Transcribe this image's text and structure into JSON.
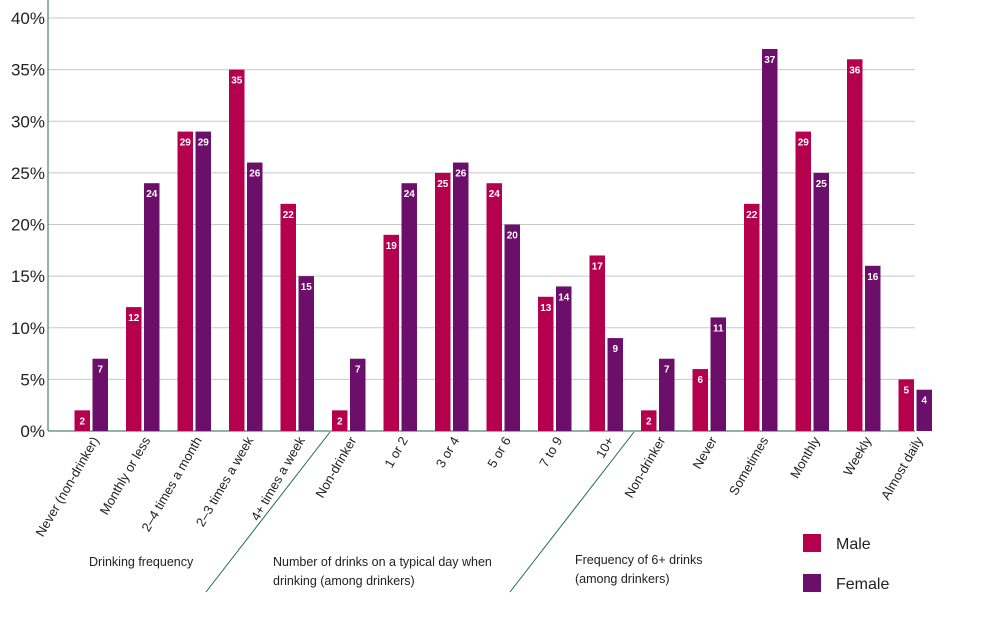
{
  "chart_data": {
    "type": "bar",
    "ylim": [
      0,
      40
    ],
    "yticks": [
      "0%",
      "5%",
      "10%",
      "15%",
      "20%",
      "25%",
      "30%",
      "35%",
      "40%"
    ],
    "grid": true,
    "legend_position": "bottom-right",
    "categories": [
      "Never (non-drinker)",
      "Monthly or less",
      "2–4 times a month",
      "2–3 times a week",
      "4+ times a week",
      "Non-drinker",
      "1 or 2",
      "3 or 4",
      "5 or 6",
      "7 to 9",
      "10+",
      "Non-drinker",
      "Never",
      "Sometimes",
      "Monthly",
      "Weekly",
      "Almost daily"
    ],
    "series": [
      {
        "name": "Male",
        "color": "#b5004d",
        "values": [
          2,
          12,
          29,
          35,
          22,
          2,
          19,
          25,
          24,
          13,
          17,
          2,
          6,
          22,
          29,
          36,
          5
        ]
      },
      {
        "name": "Female",
        "color": "#6b0f6b",
        "values": [
          7,
          24,
          29,
          26,
          15,
          7,
          24,
          26,
          20,
          14,
          9,
          7,
          11,
          37,
          25,
          16,
          4
        ]
      }
    ],
    "groups": [
      {
        "lines": [
          "Drinking frequency"
        ]
      },
      {
        "lines": [
          "Number of drinks on a typical day when",
          "drinking (among drinkers)"
        ]
      },
      {
        "lines": [
          "Frequency of 6+ drinks",
          "(among drinkers)"
        ]
      }
    ],
    "divider_color": "#1f6b4f"
  }
}
